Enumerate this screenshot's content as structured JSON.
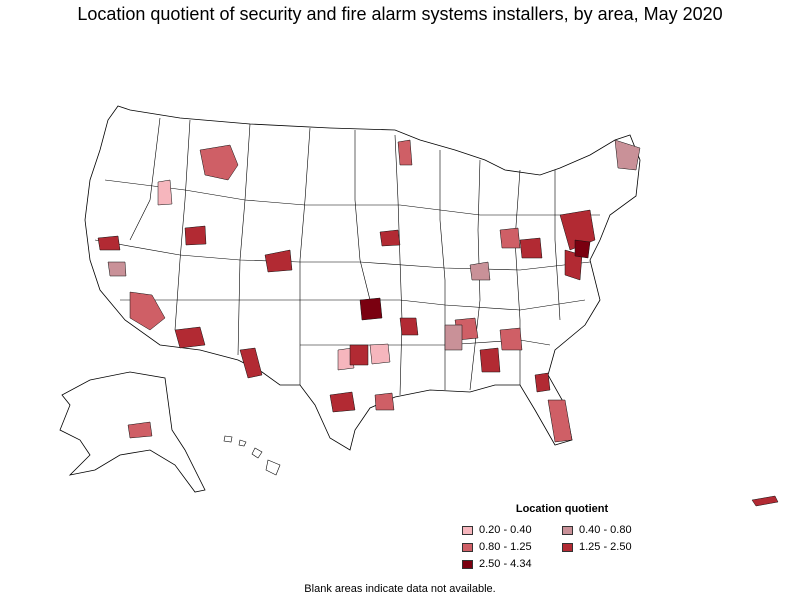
{
  "title": "Location quotient of security and fire alarm systems installers, by area, May 2020",
  "legend": {
    "title": "Location quotient",
    "items": [
      {
        "label": "0.20 - 0.40",
        "color": "#f6b6bd"
      },
      {
        "label": "0.40 - 0.80",
        "color": "#c99198"
      },
      {
        "label": "0.80 - 1.25",
        "color": "#cf5f66"
      },
      {
        "label": "1.25 - 2.50",
        "color": "#b22a33"
      },
      {
        "label": "2.50 - 4.34",
        "color": "#7a0010"
      }
    ]
  },
  "note": "Blank areas indicate data not available."
}
